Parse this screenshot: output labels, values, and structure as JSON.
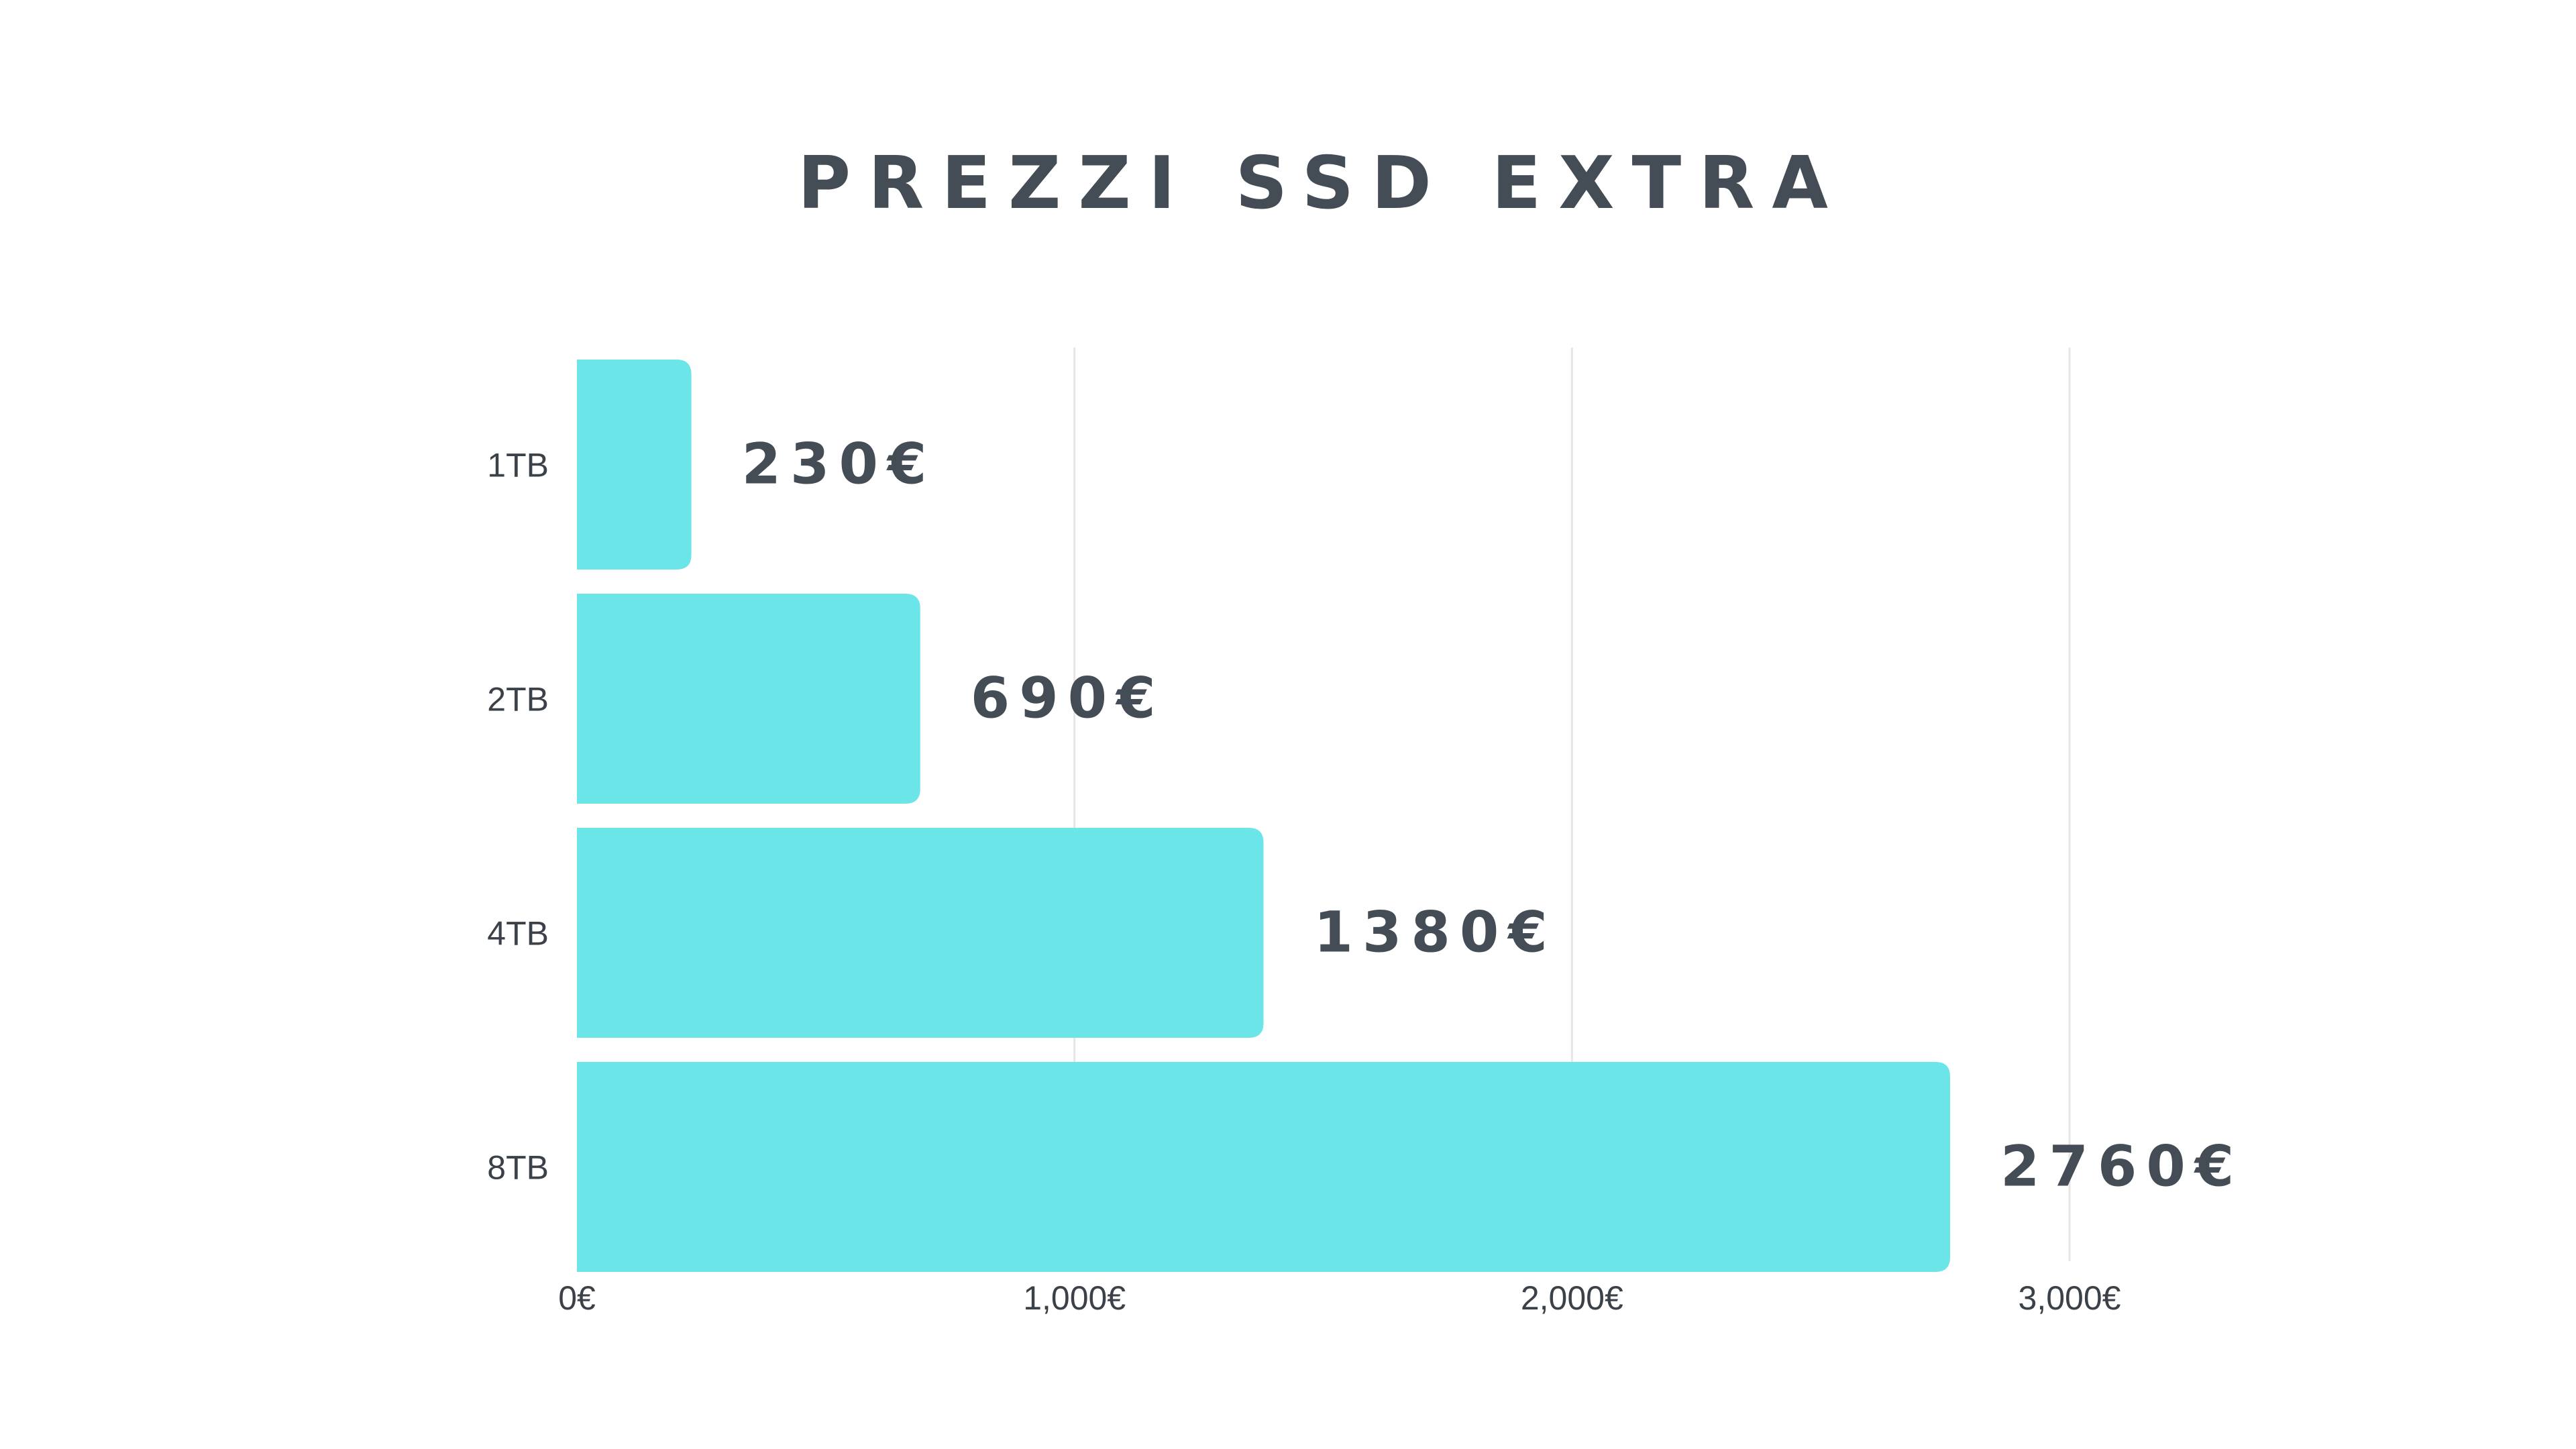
{
  "chart_data": {
    "type": "bar",
    "orientation": "horizontal",
    "title": "PREZZI SSD EXTRA",
    "categories": [
      "1TB",
      "2TB",
      "4TB",
      "8TB"
    ],
    "values": [
      230,
      690,
      1380,
      2760
    ],
    "value_labels": [
      "230€",
      "690€",
      "1380€",
      "2760€"
    ],
    "xlim": [
      0,
      3000
    ],
    "x_ticks": [
      0,
      1000,
      2000,
      3000
    ],
    "x_tick_labels": [
      "0€",
      "1,000€",
      "2,000€",
      "3,000€"
    ],
    "xlabel": "",
    "ylabel": "",
    "grid": true,
    "legend": "none",
    "colors": {
      "bar": "#6be5e8",
      "text": "#444c55",
      "grid": "#e6e6e6"
    }
  }
}
